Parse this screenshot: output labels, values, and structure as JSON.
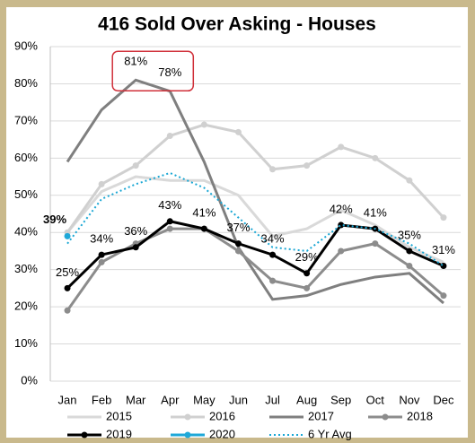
{
  "chart_data": {
    "type": "line",
    "title": "416 Sold Over Asking - Houses",
    "categories": [
      "Jan",
      "Feb",
      "Mar",
      "Apr",
      "May",
      "Jun",
      "Jul",
      "Aug",
      "Sep",
      "Oct",
      "Nov",
      "Dec"
    ],
    "ylim": [
      0,
      90
    ],
    "yticks": [
      {
        "value": 0,
        "label": "0%"
      },
      {
        "value": 10,
        "label": "10%"
      },
      {
        "value": 20,
        "label": "20%"
      },
      {
        "value": 30,
        "label": "30%"
      },
      {
        "value": 40,
        "label": "40%"
      },
      {
        "value": 50,
        "label": "50%"
      },
      {
        "value": 60,
        "label": "60%"
      },
      {
        "value": 70,
        "label": "70%"
      },
      {
        "value": 80,
        "label": "80%"
      },
      {
        "value": 90,
        "label": "90%"
      }
    ],
    "grid": true,
    "legend": "bottom",
    "series": [
      {
        "name": "2015",
        "color": "#d9d9d9",
        "marker": false,
        "values": [
          40,
          51,
          55,
          54,
          54,
          50,
          39,
          41,
          46,
          42,
          36,
          32
        ]
      },
      {
        "name": "2016",
        "color": "#d0d0d0",
        "marker": true,
        "values": [
          40,
          53,
          58,
          66,
          69,
          67,
          57,
          58,
          63,
          60,
          54,
          44
        ]
      },
      {
        "name": "2017",
        "color": "#7f7f7f",
        "marker": false,
        "values": [
          59,
          73,
          81,
          78,
          59,
          36,
          22,
          23,
          26,
          28,
          29,
          21
        ],
        "value_labels": [
          null,
          null,
          "81%",
          "78%",
          null,
          null,
          null,
          null,
          null,
          null,
          null,
          null
        ]
      },
      {
        "name": "2018",
        "color": "#8c8c8c",
        "marker": true,
        "values": [
          19,
          32,
          37,
          41,
          41,
          35,
          27,
          25,
          35,
          37,
          31,
          23
        ]
      },
      {
        "name": "2019",
        "color": "#000000",
        "marker": true,
        "values": [
          25,
          34,
          36,
          43,
          41,
          37,
          34,
          29,
          42,
          41,
          35,
          31
        ],
        "value_labels": [
          "25%",
          "34%",
          "36%",
          "43%",
          "41%",
          "37%",
          "34%",
          "29%",
          "42%",
          "41%",
          "35%",
          "31%"
        ]
      },
      {
        "name": "2020",
        "color": "#1fa8d8",
        "marker": true,
        "values": [
          39,
          null,
          null,
          null,
          null,
          null,
          null,
          null,
          null,
          null,
          null,
          null
        ],
        "value_labels": [
          "39%",
          null,
          null,
          null,
          null,
          null,
          null,
          null,
          null,
          null,
          null,
          null
        ]
      },
      {
        "name": "6 Yr Avg",
        "color": "#1aa7d4",
        "marker": false,
        "dash": "dotted",
        "values": [
          37,
          49,
          53,
          56,
          52,
          44,
          36,
          35,
          42,
          41,
          37,
          31
        ]
      }
    ]
  }
}
